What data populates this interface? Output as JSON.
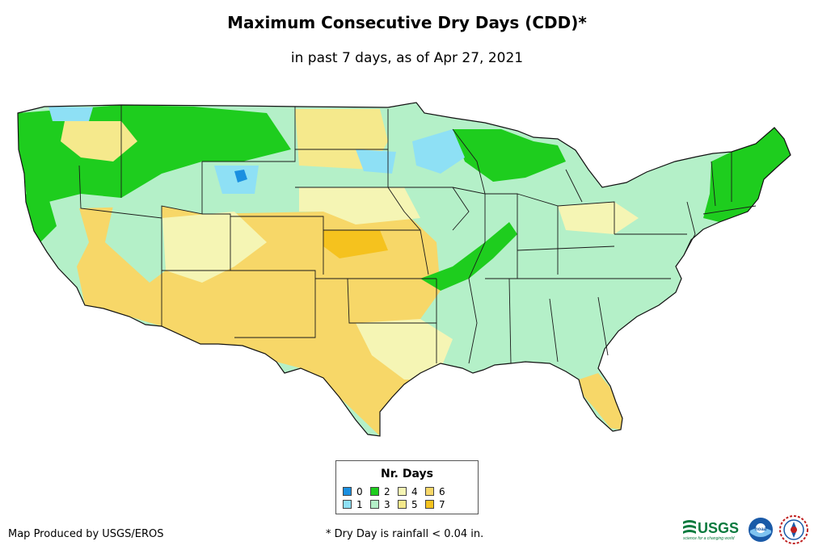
{
  "title": "Maximum Consecutive Dry Days (CDD)*",
  "subtitle": "in past 7 days, as of Apr 27, 2021",
  "legend": {
    "title": "Nr. Days",
    "items": [
      {
        "label": "0",
        "color": "#1a8fe0"
      },
      {
        "label": "1",
        "color": "#8ee0f5"
      },
      {
        "label": "2",
        "color": "#1ecd1e"
      },
      {
        "label": "3",
        "color": "#b4f0c8"
      },
      {
        "label": "4",
        "color": "#f5f5b4"
      },
      {
        "label": "5",
        "color": "#f5e98c"
      },
      {
        "label": "6",
        "color": "#f7d768"
      },
      {
        "label": "7",
        "color": "#f5c21e"
      }
    ]
  },
  "credit": "Map Produced by USGS/EROS",
  "footnote": "* Dry Day is rainfall < 0.04 in.",
  "logos": {
    "usgs": {
      "name": "usgs-logo",
      "text": "USGS",
      "tagline": "science for a changing world"
    },
    "noaa": {
      "name": "noaa-logo",
      "text": "noaa"
    },
    "nws": {
      "name": "nws-logo"
    }
  }
}
